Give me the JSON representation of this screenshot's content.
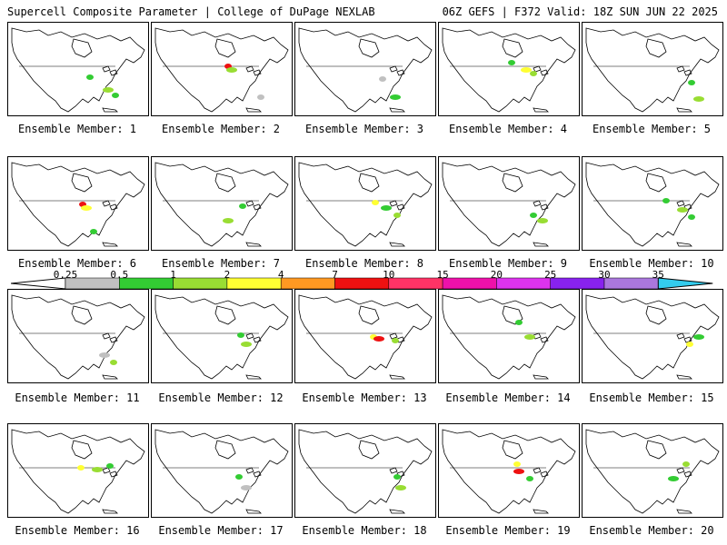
{
  "header": {
    "left": "Supercell Composite Parameter | College of DuPage NEXLAB",
    "right": "06Z GEFS | F372 Valid: 18Z SUN JUN 22 2025"
  },
  "colorbar": {
    "labels": [
      "0.25",
      "0.5",
      "1",
      "2",
      "4",
      "7",
      "10",
      "15",
      "20",
      "25",
      "30",
      "35"
    ],
    "colors": [
      "#c0c0c0",
      "#33cc33",
      "#99dd33",
      "#ffff33",
      "#ff9922",
      "#ee1111",
      "#ff3366",
      "#ee11aa",
      "#dd33ee",
      "#8822ee",
      "#aa77dd",
      "#33ccee"
    ]
  },
  "members": [
    {
      "label": "Ensemble Member: 1"
    },
    {
      "label": "Ensemble Member: 2"
    },
    {
      "label": "Ensemble Member: 3"
    },
    {
      "label": "Ensemble Member: 4"
    },
    {
      "label": "Ensemble Member: 5"
    },
    {
      "label": "Ensemble Member: 6"
    },
    {
      "label": "Ensemble Member: 7"
    },
    {
      "label": "Ensemble Member: 8"
    },
    {
      "label": "Ensemble Member: 9"
    },
    {
      "label": "Ensemble Member: 10"
    },
    {
      "label": "Ensemble Member: 11"
    },
    {
      "label": "Ensemble Member: 12"
    },
    {
      "label": "Ensemble Member: 13"
    },
    {
      "label": "Ensemble Member: 14"
    },
    {
      "label": "Ensemble Member: 15"
    },
    {
      "label": "Ensemble Member: 16"
    },
    {
      "label": "Ensemble Member: 17"
    },
    {
      "label": "Ensemble Member: 18"
    },
    {
      "label": "Ensemble Member: 19"
    },
    {
      "label": "Ensemble Member: 20"
    }
  ]
}
